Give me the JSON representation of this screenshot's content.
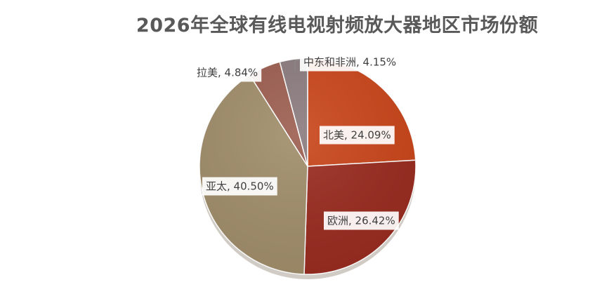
{
  "chart_data": {
    "type": "pie",
    "title": "2026年全球有线电视射频放大器地区市场份额",
    "slices": [
      {
        "name": "北美",
        "value": 24.09,
        "label": "北美, 24.09%",
        "color": "#C9451A"
      },
      {
        "name": "欧洲",
        "value": 26.42,
        "label": "欧洲, 26.42%",
        "color": "#992B1F"
      },
      {
        "name": "亚太",
        "value": 40.5,
        "label": "亚太, 40.50%",
        "color": "#A08D6A"
      },
      {
        "name": "拉美",
        "value": 4.84,
        "label": "拉美, 4.84%",
        "color": "#9C5E4F"
      },
      {
        "name": "中东和非洲",
        "value": 4.15,
        "label": "中东和非洲, 4.15%",
        "color": "#8A7B7E"
      }
    ],
    "start_angle_deg": 0,
    "direction": "clockwise",
    "legend": "none"
  }
}
